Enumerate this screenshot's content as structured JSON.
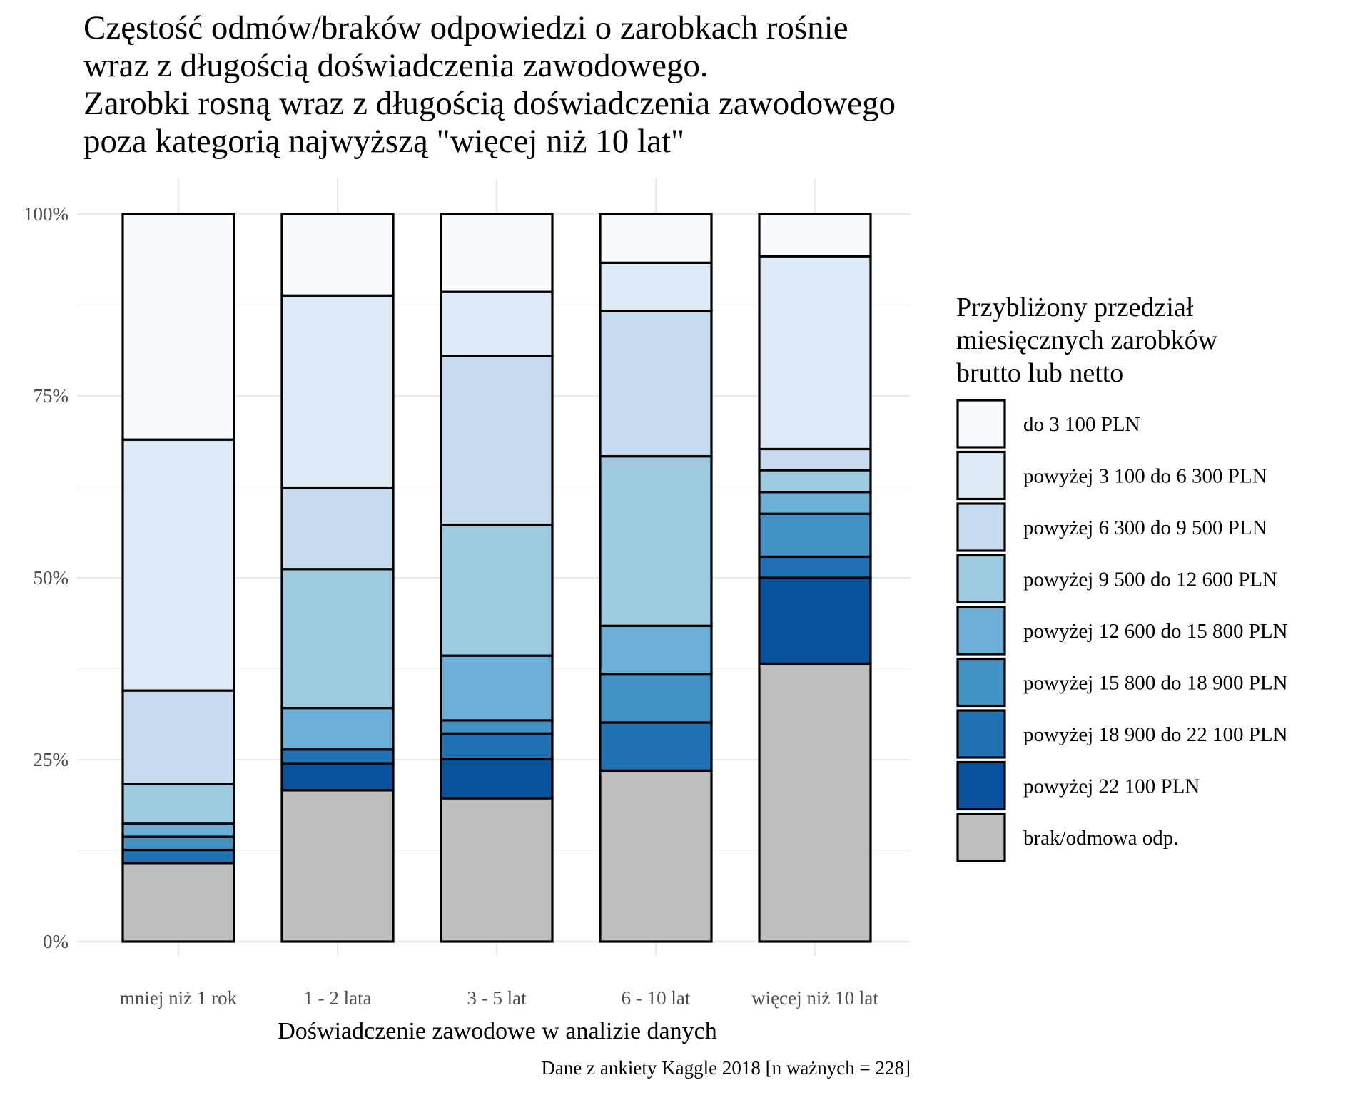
{
  "chart_data": {
    "type": "bar",
    "stacked": true,
    "percent": true,
    "title": [
      "Częstość odmów/braków odpowiedzi o zarobkach rośnie",
      "wraz z długością doświadczenia zawodowego.",
      "Zarobki rosną wraz z długością doświadczenia zawodowego",
      "poza kategorią najwyższą \"więcej niż 10 lat\""
    ],
    "xlabel": "Doświadczenie zawodowe w analizie danych",
    "ylabel": "",
    "caption": "Dane z ankiety Kaggle 2018 [n ważnych = 228]",
    "categories": [
      "mniej niż 1 rok",
      "1 - 2 lata",
      "3 - 5 lat",
      "6 - 10 lat",
      "więcej niż 10 lat"
    ],
    "ylim": [
      0,
      1
    ],
    "yticks": [
      0,
      0.25,
      0.5,
      0.75,
      1
    ],
    "ytick_labels": [
      "0%",
      "25%",
      "50%",
      "75%",
      "100%"
    ],
    "grid": true,
    "legend": {
      "position": "right",
      "title": [
        "Przybliżony przedział",
        "miesięcznych zarobków",
        "brutto lub netto"
      ]
    },
    "series": [
      {
        "name": "do 3 100 PLN",
        "color": "#f7fbff",
        "values": [
          0.31,
          0.112,
          0.107,
          0.067,
          0.058
        ]
      },
      {
        "name": "powyżej 3 100 do 6 300 PLN",
        "color": "#deebf7",
        "values": [
          0.345,
          0.264,
          0.088,
          0.066,
          0.265
        ]
      },
      {
        "name": "powyżej 6 300 do 9 500 PLN",
        "color": "#c6dbef",
        "values": [
          0.128,
          0.112,
          0.232,
          0.2,
          0.029
        ]
      },
      {
        "name": "powyżej 9 500 do 12 600 PLN",
        "color": "#9ecae1",
        "values": [
          0.055,
          0.191,
          0.18,
          0.233,
          0.03
        ]
      },
      {
        "name": "powyżej 12 600 do 15 800 PLN",
        "color": "#6baed6",
        "values": [
          0.018,
          0.057,
          0.089,
          0.066,
          0.03
        ]
      },
      {
        "name": "powyżej 15 800 do 18 900 PLN",
        "color": "#4292c6",
        "values": [
          0.018,
          0.0,
          0.018,
          0.067,
          0.059
        ]
      },
      {
        "name": "powyżej 18 900 do 22 100 PLN",
        "color": "#2171b5",
        "values": [
          0.018,
          0.019,
          0.035,
          0.066,
          0.029
        ]
      },
      {
        "name": "powyżej 22 100 PLN",
        "color": "#08519c",
        "values": [
          0.0,
          0.037,
          0.054,
          0.0,
          0.118
        ]
      },
      {
        "name": "brak/odmowa odp.",
        "color": "#bebebe",
        "values": [
          0.108,
          0.208,
          0.197,
          0.235,
          0.382
        ]
      }
    ]
  }
}
